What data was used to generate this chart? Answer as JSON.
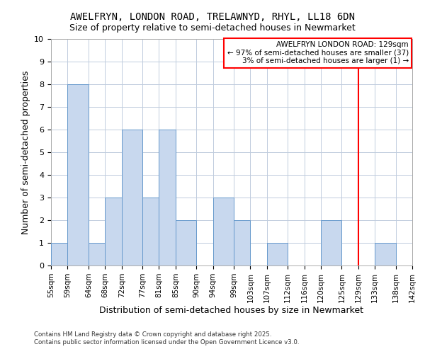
{
  "title": "AWELFRYN, LONDON ROAD, TRELAWNYD, RHYL, LL18 6DN",
  "subtitle": "Size of property relative to semi-detached houses in Newmarket",
  "xlabel": "Distribution of semi-detached houses by size in Newmarket",
  "ylabel": "Number of semi-detached properties",
  "bin_edges": [
    55,
    59,
    64,
    68,
    72,
    77,
    81,
    85,
    90,
    94,
    99,
    103,
    107,
    112,
    116,
    120,
    125,
    129,
    133,
    138,
    142
  ],
  "bar_heights": [
    1,
    8,
    1,
    3,
    6,
    3,
    6,
    2,
    0,
    3,
    2,
    0,
    1,
    0,
    0,
    2,
    0,
    0,
    1,
    0
  ],
  "bar_color": "#c8d8ee",
  "bar_edge_color": "#6699cc",
  "grid_color": "#c0ccdd",
  "reference_line_x": 129,
  "reference_line_color": "red",
  "ylim": [
    0,
    10
  ],
  "yticks": [
    0,
    1,
    2,
    3,
    4,
    5,
    6,
    7,
    8,
    9,
    10
  ],
  "annotation_title": "AWELFRYN LONDON ROAD: 129sqm",
  "annotation_line1": "← 97% of semi-detached houses are smaller (37)",
  "annotation_line2": "3% of semi-detached houses are larger (1) →",
  "annotation_box_color": "#ffffff",
  "annotation_box_edge": "red",
  "footer1": "Contains HM Land Registry data © Crown copyright and database right 2025.",
  "footer2": "Contains public sector information licensed under the Open Government Licence v3.0.",
  "background_color": "#ffffff",
  "plot_background": "#ffffff",
  "title_fontsize": 10,
  "subtitle_fontsize": 9
}
